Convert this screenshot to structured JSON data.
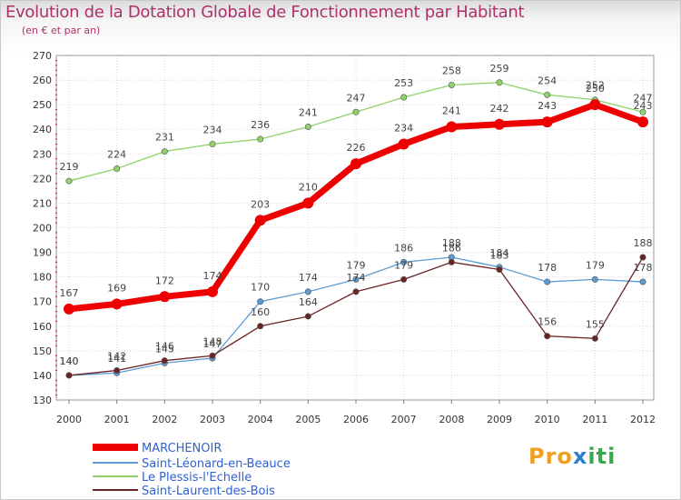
{
  "chart_data": {
    "type": "line",
    "title": "Evolution de la Dotation Globale de Fonctionnement par Habitant",
    "subtitle": "(en € et par an)",
    "xlabel": "",
    "ylabel": "",
    "x": [
      "2000",
      "2001",
      "2002",
      "2003",
      "2004",
      "2005",
      "2006",
      "2007",
      "2008",
      "2009",
      "2010",
      "2011",
      "2012"
    ],
    "ylim": [
      130,
      270
    ],
    "yticks": [
      130,
      140,
      150,
      160,
      170,
      180,
      190,
      200,
      210,
      220,
      230,
      240,
      250,
      260,
      270
    ],
    "grid": true,
    "legend": "bottom-left",
    "series": [
      {
        "name": "MARCHENOIR",
        "color": "#ee0000",
        "values": [
          167,
          169,
          172,
          174,
          203,
          210,
          226,
          234,
          241,
          242,
          243,
          250,
          243
        ]
      },
      {
        "name": "Saint-Léonard-en-Beauce",
        "color": "#5b9bd5",
        "values": [
          140,
          141,
          145,
          147,
          170,
          174,
          179,
          186,
          188,
          184,
          178,
          179,
          178
        ]
      },
      {
        "name": "Le Plessis-l'Echelle",
        "color": "#8fd16a",
        "values": [
          219,
          224,
          231,
          234,
          236,
          241,
          247,
          253,
          258,
          259,
          254,
          252,
          247
        ]
      },
      {
        "name": "Saint-Laurent-des-Bois",
        "color": "#6b2424",
        "values": [
          140,
          142,
          146,
          148,
          160,
          164,
          174,
          179,
          186,
          183,
          156,
          155,
          188
        ]
      }
    ]
  },
  "logo": {
    "parts": [
      "Pro",
      "x",
      "iti"
    ],
    "colors": [
      "#f0a020",
      "#2a7fd0",
      "#3aa84a"
    ]
  }
}
